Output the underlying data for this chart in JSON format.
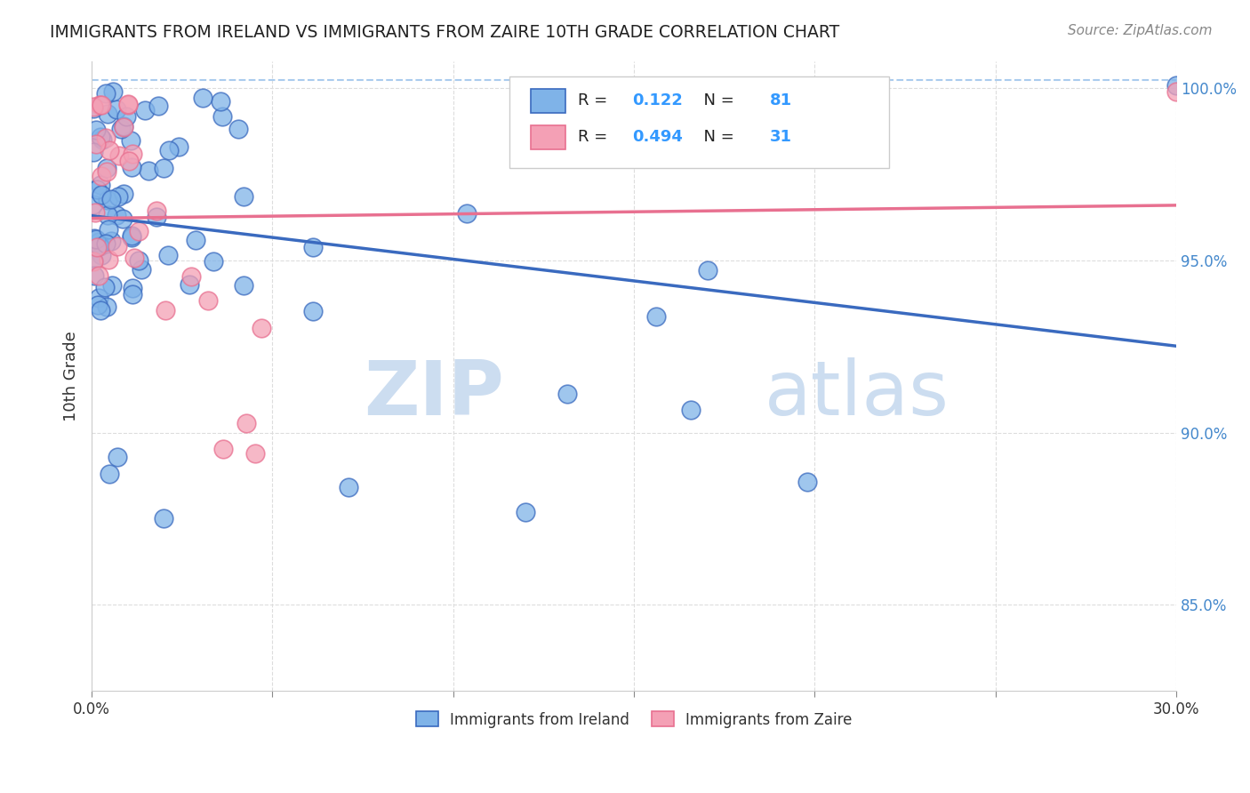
{
  "title": "IMMIGRANTS FROM IRELAND VS IMMIGRANTS FROM ZAIRE 10TH GRADE CORRELATION CHART",
  "source": "Source: ZipAtlas.com",
  "ylabel": "10th Grade",
  "legend1_label": "Immigrants from Ireland",
  "legend2_label": "Immigrants from Zaire",
  "R1": 0.122,
  "N1": 81,
  "R2": 0.494,
  "N2": 31,
  "ireland_color": "#7fb3e8",
  "zaire_color": "#f4a0b5",
  "ireland_line_color": "#3a6abf",
  "zaire_line_color": "#e87090",
  "background_color": "#ffffff",
  "grid_color": "#dddddd",
  "watermark_zip": "ZIP",
  "watermark_atlas": "atlas",
  "watermark_color_zip": "#c8dcf0",
  "watermark_color_atlas": "#c8dcf0"
}
